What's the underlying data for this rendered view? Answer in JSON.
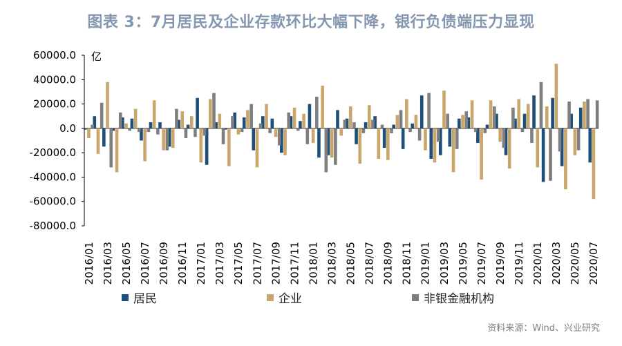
{
  "title": "图表 3：7月居民及企业存款环比大幅下降，银行负债端压力显现",
  "source": "资料来源：Wind、兴业研究",
  "colors": {
    "居民": "#1f4e79",
    "企业": "#c9a66b",
    "非银金融机构": "#7f7f7f"
  },
  "chart_data": {
    "type": "bar",
    "unit_label": "亿",
    "ylim": [
      -80000,
      60000
    ],
    "yticks": [
      "60000.0",
      "40000.0",
      "20000.0",
      "0.0",
      "-20000.0",
      "-40000.0",
      "-60000.0",
      "-80000.0"
    ],
    "ytick_values": [
      60000,
      40000,
      20000,
      0,
      -20000,
      -40000,
      -60000,
      -80000
    ],
    "legend_position": "bottom",
    "categories": [
      "2016/01",
      "2016/02",
      "2016/03",
      "2016/04",
      "2016/05",
      "2016/06",
      "2016/07",
      "2016/08",
      "2016/09",
      "2016/10",
      "2016/11",
      "2016/12",
      "2017/01",
      "2017/02",
      "2017/03",
      "2017/04",
      "2017/05",
      "2017/06",
      "2017/07",
      "2017/08",
      "2017/09",
      "2017/10",
      "2017/11",
      "2017/12",
      "2018/01",
      "2018/02",
      "2018/03",
      "2018/04",
      "2018/05",
      "2018/06",
      "2018/07",
      "2018/08",
      "2018/09",
      "2018/10",
      "2018/11",
      "2018/12",
      "2019/01",
      "2019/02",
      "2019/03",
      "2019/04",
      "2019/05",
      "2019/06",
      "2019/07",
      "2019/08",
      "2019/09",
      "2019/10",
      "2019/11",
      "2019/12",
      "2020/01",
      "2020/02",
      "2020/03",
      "2020/04",
      "2020/05",
      "2020/06",
      "2020/07"
    ],
    "series": [
      {
        "name": "居民",
        "values": [
          -1000,
          10000,
          -15000,
          -2000,
          9000,
          8000,
          -10000,
          5000,
          5000,
          -15000,
          7000,
          3000,
          25000,
          -30000,
          5000,
          -1000,
          13000,
          9000,
          -18000,
          10000,
          8000,
          -20000,
          10000,
          6000,
          20000,
          -24000,
          -22000,
          15000,
          8000,
          -13000,
          5000,
          10000,
          -16000,
          3000,
          -17000,
          4000,
          27000,
          -25000,
          -22000,
          -15000,
          8000,
          9000,
          -12000,
          3000,
          12000,
          -22000,
          8000,
          12000,
          27000,
          -44000,
          25000,
          -31000,
          12000,
          17000,
          -28000
        ]
      },
      {
        "name": "企业",
        "values": [
          -8000,
          -21000,
          38000,
          -36000,
          4000,
          16000,
          -27000,
          23000,
          -18000,
          -16000,
          14000,
          10000,
          -28000,
          24000,
          12000,
          -31000,
          -5000,
          15000,
          -32000,
          20000,
          -7000,
          -22000,
          17000,
          12000,
          -12000,
          35000,
          -24000,
          -6000,
          18000,
          -29000,
          19000,
          -25000,
          -26000,
          11000,
          24000,
          11000,
          -18000,
          -28000,
          31000,
          -36000,
          11000,
          23000,
          -42000,
          23000,
          -11000,
          -33000,
          24000,
          20000,
          -32000,
          18000,
          53000,
          -50000,
          -22000,
          22000,
          -58000
        ]
      },
      {
        "name": "非银金融机构",
        "values": [
          3000,
          21000,
          -32000,
          13000,
          -2000,
          -3000,
          -3000,
          -5000,
          -18000,
          16000,
          -8000,
          -7000,
          -6000,
          29000,
          -13000,
          10000,
          -3000,
          20000,
          4000,
          -4000,
          -14000,
          13000,
          -2000,
          -13000,
          26000,
          -36000,
          -30000,
          7000,
          5000,
          -4000,
          7000,
          3000,
          -4000,
          15000,
          -3000,
          -10000,
          29000,
          -11000,
          12000,
          -17000,
          14000,
          -3000,
          -4000,
          18000,
          -16000,
          17000,
          -3000,
          -12000,
          38000,
          -43000,
          -19000,
          22000,
          -18000,
          24000,
          23000
        ]
      }
    ],
    "xtick_labels": [
      "2016/01",
      "2016/03",
      "2016/05",
      "2016/07",
      "2016/09",
      "2016/11",
      "2017/01",
      "2017/03",
      "2017/05",
      "2017/07",
      "2017/09",
      "2017/11",
      "2018/01",
      "2018/03",
      "2018/05",
      "2018/07",
      "2018/09",
      "2018/11",
      "2019/01",
      "2019/03",
      "2019/05",
      "2019/07",
      "2019/09",
      "2019/11",
      "2020/01",
      "2020/03",
      "2020/05",
      "2020/07"
    ]
  }
}
